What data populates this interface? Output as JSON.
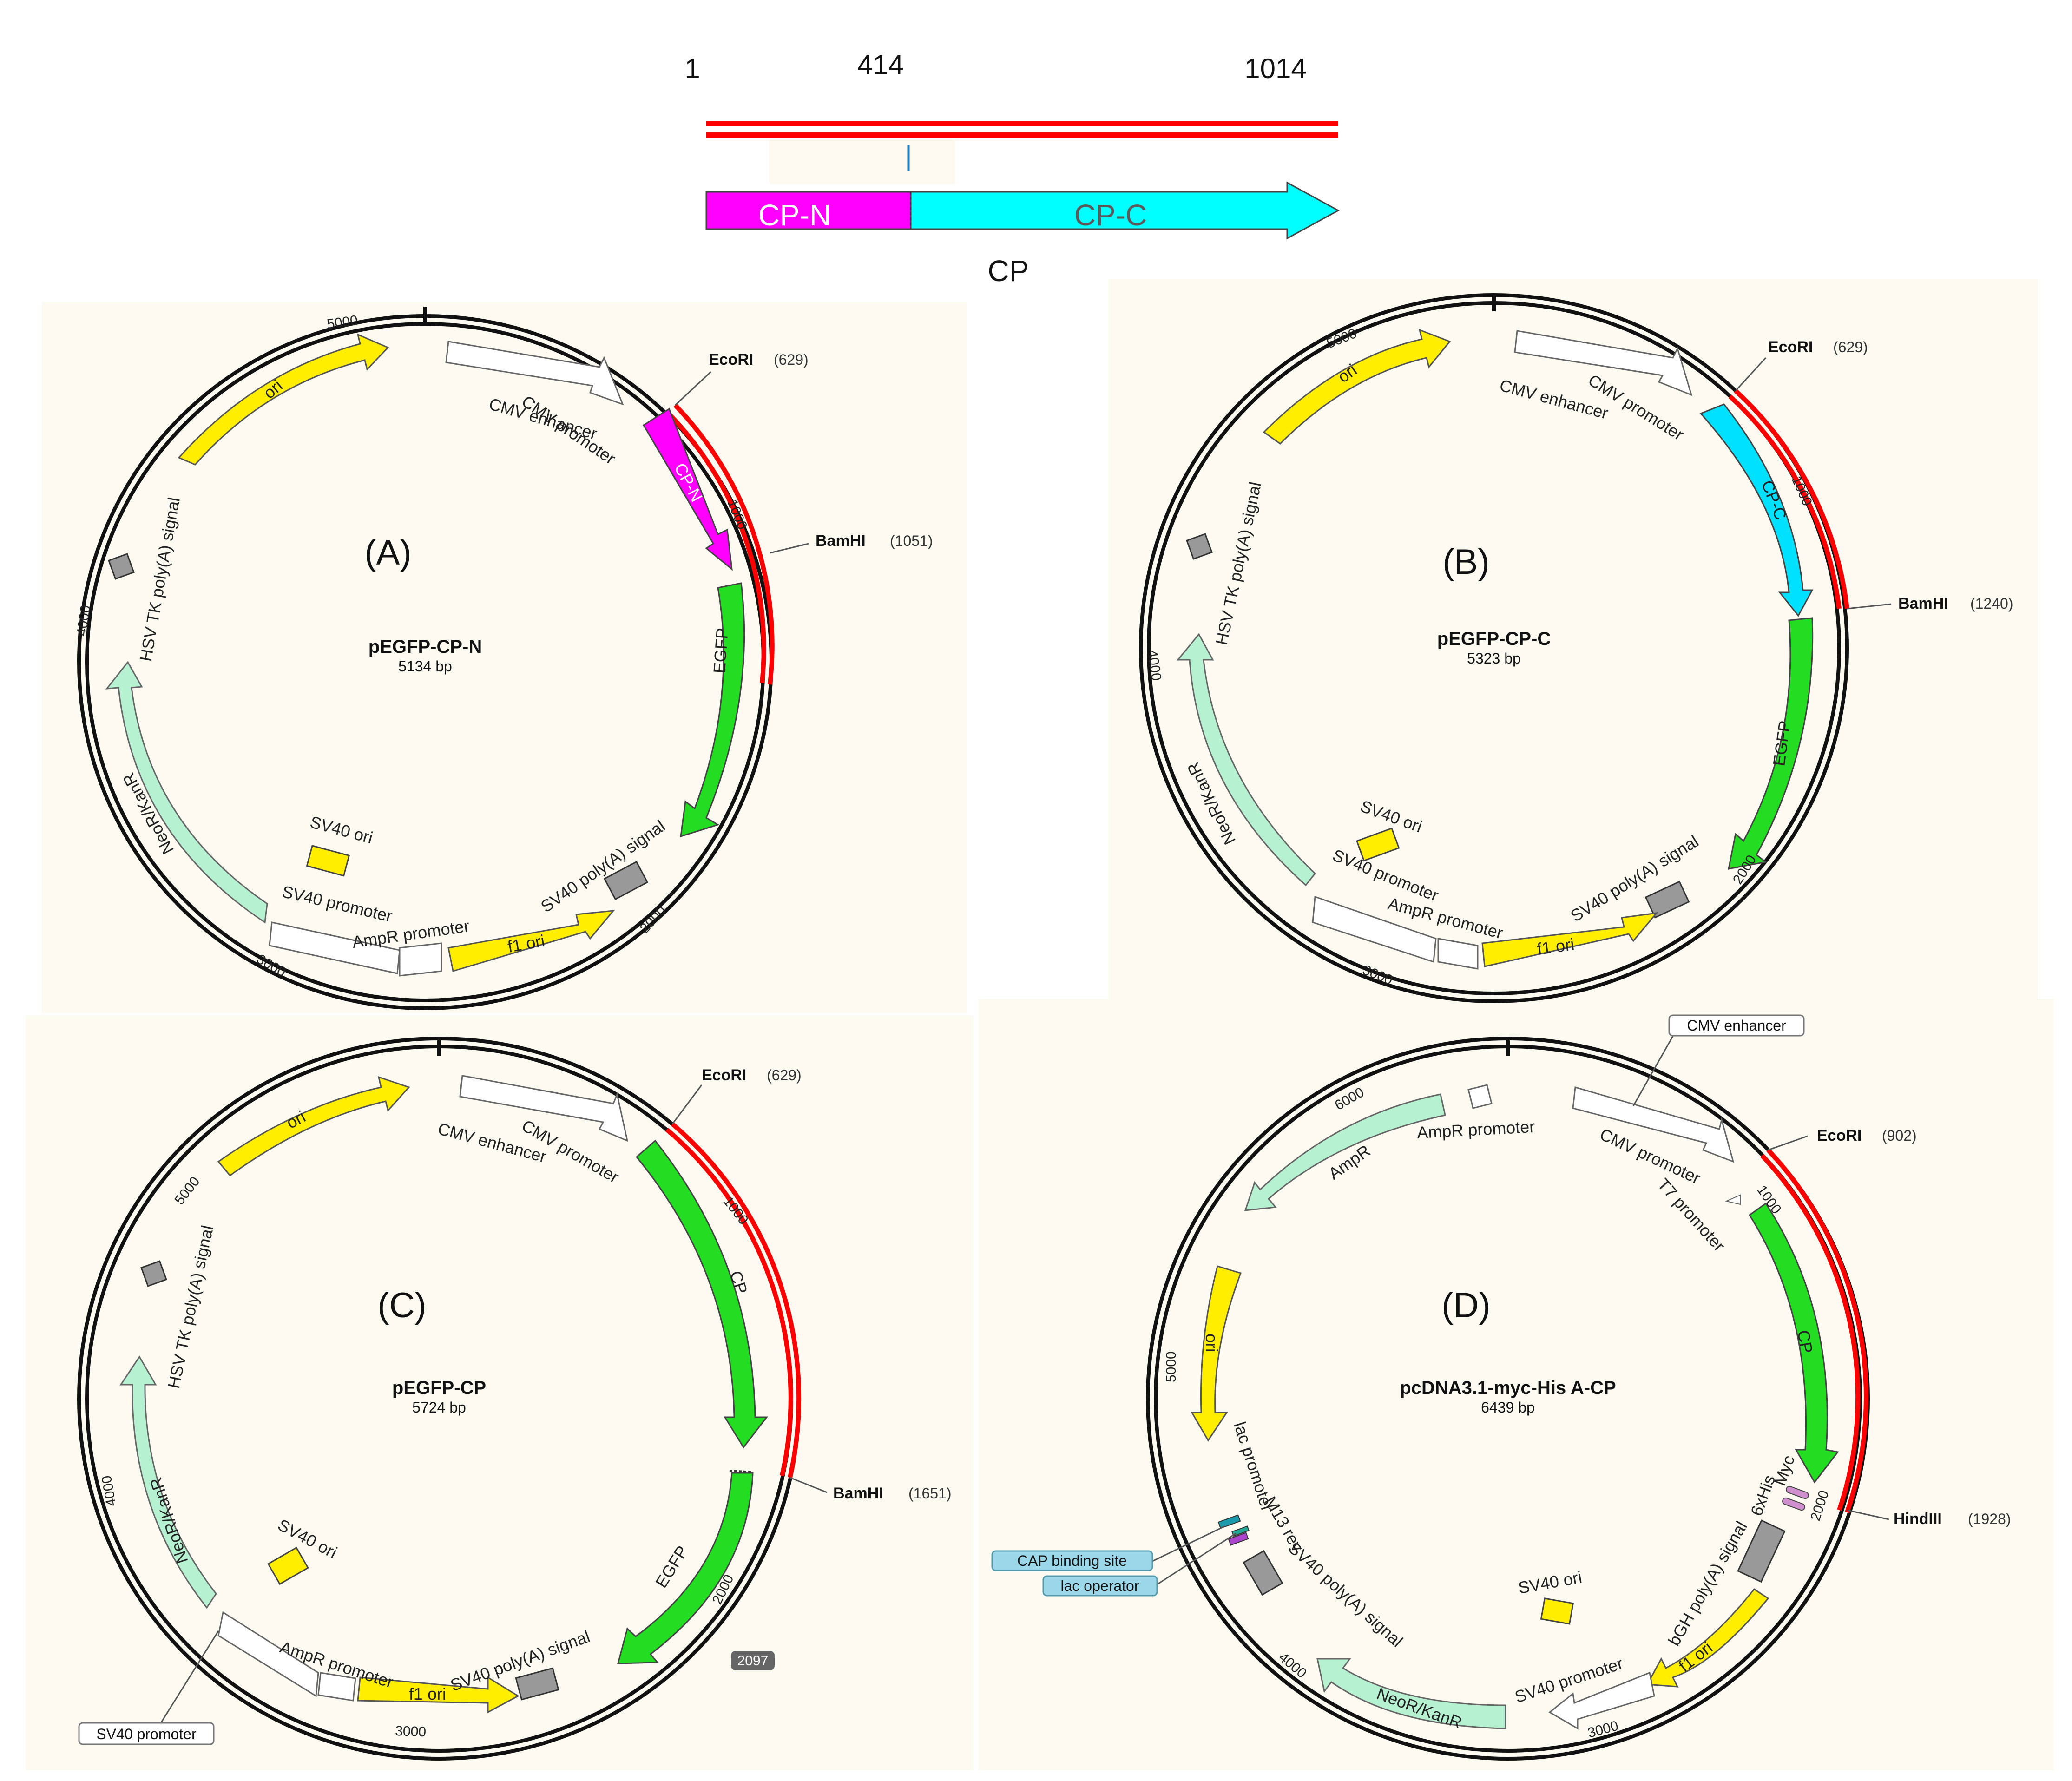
{
  "cp_map": {
    "positions": [
      "1",
      "414",
      "1014"
    ],
    "segment_n": "CP-N",
    "segment_c": "CP-C",
    "gene_label": "CP",
    "colors": {
      "line": "#ff0000",
      "n": "#ff00ff",
      "c": "#00ffff"
    }
  },
  "panels": {
    "a": {
      "letter": "(A)",
      "name": "pEGFP-CP-N",
      "size": "5134 bp",
      "site1_name": "EcoRI",
      "site1_pos": "(629)",
      "site2_name": "BamHI",
      "site2_pos": "(1051)",
      "features": {
        "cmv_enhancer": "CMV enhancer",
        "cmv_promoter": "CMV promoter",
        "insert": "CP-N",
        "egfp": "EGFP",
        "sv40_pa": "SV40 poly(A) signal",
        "f1_ori": "f1 ori",
        "ampr_promoter": "AmpR promoter",
        "sv40_promoter": "SV40 promoter",
        "sv40_ori": "SV40 ori",
        "neor": "NeoR/KanR",
        "hsv_tk": "HSV TK poly(A) signal",
        "ori": "ori"
      },
      "ticks": [
        "5000",
        "1000",
        "2000",
        "3000",
        "4000"
      ]
    },
    "b": {
      "letter": "(B)",
      "name": "pEGFP-CP-C",
      "size": "5323 bp",
      "site1_name": "EcoRI",
      "site1_pos": "(629)",
      "site2_name": "BamHI",
      "site2_pos": "(1240)",
      "features": {
        "cmv_enhancer": "CMV enhancer",
        "cmv_promoter": "CMV promoter",
        "insert": "CP-C",
        "egfp": "EGFP",
        "sv40_pa": "SV40 poly(A) signal",
        "f1_ori": "f1 ori",
        "ampr_promoter": "AmpR promoter",
        "sv40_promoter": "SV40 promoter",
        "sv40_ori": "SV40 ori",
        "neor": "NeoR/KanR",
        "hsv_tk": "HSV TK poly(A) signal",
        "ori": "ori"
      },
      "ticks": [
        "5000",
        "1000",
        "2000",
        "3000",
        "4000"
      ]
    },
    "c": {
      "letter": "(C)",
      "name": "pEGFP-CP",
      "size": "5724 bp",
      "site1_name": "EcoRI",
      "site1_pos": "(629)",
      "site2_name": "BamHI",
      "site2_pos": "(1651)",
      "features": {
        "cmv_enhancer": "CMV enhancer",
        "cmv_promoter": "CMV promoter",
        "insert": "CP",
        "egfp": "EGFP",
        "sv40_pa": "SV40 poly(A) signal",
        "f1_ori": "f1 ori",
        "ampr_promoter": "AmpR promoter",
        "sv40_promoter_box": "SV40 promoter",
        "sv40_ori": "SV40 ori",
        "neor": "NeoR/KanR",
        "hsv_tk": "HSV TK poly(A) signal",
        "ori": "ori"
      },
      "ticks": [
        "5000",
        "1000",
        "2000",
        "3000",
        "4000"
      ],
      "tag": "2097"
    },
    "d": {
      "letter": "(D)",
      "name": "pcDNA3.1-myc-His A-CP",
      "size": "6439 bp",
      "site1_name": "EcoRI",
      "site1_pos": "(902)",
      "site2_name": "HindIII",
      "site2_pos": "(1928)",
      "features": {
        "cmv_enhancer_box": "CMV enhancer",
        "cmv_promoter": "CMV promoter",
        "t7": "T7 promoter",
        "insert": "CP",
        "myc": "Myc",
        "his": "6xHis",
        "bgh": "bGH poly(A) signal",
        "f1_ori": "f1 ori",
        "sv40_promoter": "SV40 promoter",
        "sv40_ori": "SV40 ori",
        "neor": "NeoR/KanR",
        "sv40_pa": "SV40 poly(A) signal",
        "m13": "M13 rev",
        "lac_promoter": "lac promoter",
        "cap_box": "CAP binding site",
        "lac_op_box": "lac operator",
        "ori": "ori",
        "ampr": "AmpR",
        "ampr_promoter": "AmpR promoter"
      },
      "ticks": [
        "6000",
        "1000",
        "2000",
        "3000",
        "4000",
        "5000"
      ]
    }
  }
}
